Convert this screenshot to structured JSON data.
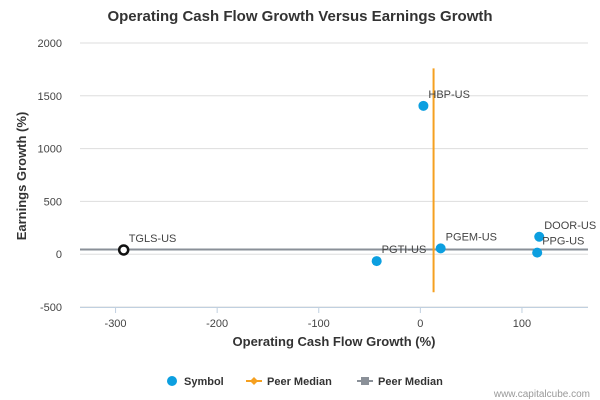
{
  "chart_data": {
    "type": "scatter",
    "title": "Operating Cash Flow Growth Versus Earnings Growth",
    "xlabel": "Operating Cash Flow Growth (%)",
    "ylabel": "Earnings Growth (%)",
    "xlim": [
      -335,
      165
    ],
    "ylim": [
      -500,
      2000
    ],
    "xticks": [
      -300,
      -200,
      -100,
      0,
      100
    ],
    "yticks": [
      -500,
      0,
      500,
      1000,
      1500,
      2000
    ],
    "grid": "horizontal",
    "points": [
      {
        "label": "HBP-US",
        "x": 3,
        "y": 1405,
        "highlight": false
      },
      {
        "label": "DOOR-US",
        "x": 117,
        "y": 165,
        "highlight": false
      },
      {
        "label": "PPG-US",
        "x": 115,
        "y": 15,
        "highlight": false
      },
      {
        "label": "PGEM-US",
        "x": 20,
        "y": 55,
        "highlight": false
      },
      {
        "label": "PGTI-US",
        "x": -43,
        "y": -65,
        "highlight": false
      },
      {
        "label": "TGLS-US",
        "x": -292,
        "y": 40,
        "highlight": true
      }
    ],
    "peer_median_x": 13,
    "peer_median_y": 45,
    "peer_median_x_span": [
      -360,
      1760
    ],
    "peer_median_y_span": [
      -335,
      165
    ],
    "legend": {
      "position": "bottom",
      "items": [
        {
          "label": "Symbol",
          "kind": "dot",
          "color": "#0c9fe0"
        },
        {
          "label": "Peer Median",
          "kind": "line-diamond",
          "color": "#f5a020"
        },
        {
          "label": "Peer Median",
          "kind": "line-square",
          "color": "#8a9098"
        }
      ]
    },
    "colors": {
      "point": "#0c9fe0",
      "highlight_stroke": "#111111",
      "vertical_median": "#f5a020",
      "horizontal_median": "#8a9098",
      "grid": "#dddddd",
      "axis": "#c0d0e0"
    },
    "credit": "www.capitalcube.com"
  }
}
